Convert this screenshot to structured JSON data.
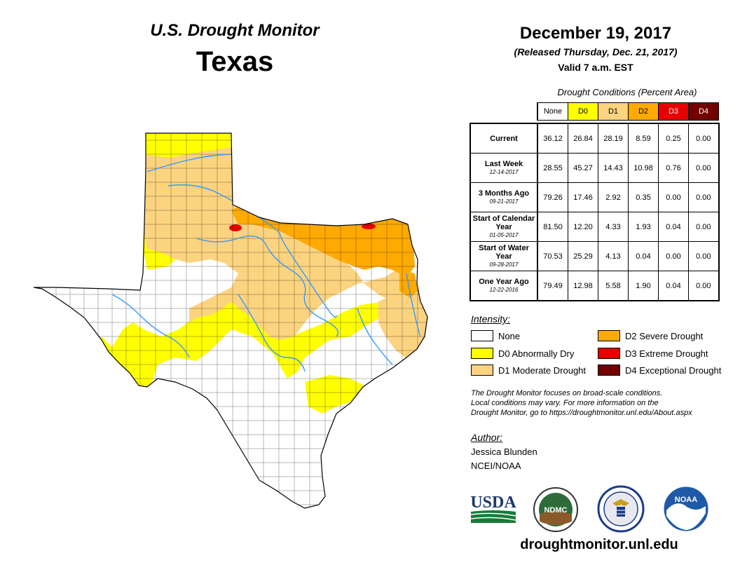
{
  "header": {
    "title": "U.S. Drought Monitor",
    "state": "Texas",
    "date": "December 19, 2017",
    "released": "(Released Thursday, Dec. 21, 2017)",
    "valid": "Valid 7 a.m. EST"
  },
  "table": {
    "caption": "Drought Conditions (Percent Area)",
    "columns": [
      "None",
      "D0",
      "D1",
      "D2",
      "D3",
      "D4"
    ],
    "rows": [
      {
        "label": "Current",
        "date": "",
        "values": [
          "36.12",
          "26.84",
          "28.19",
          "8.59",
          "0.25",
          "0.00"
        ]
      },
      {
        "label": "Last Week",
        "date": "12-14-2017",
        "values": [
          "28.55",
          "45.27",
          "14.43",
          "10.98",
          "0.76",
          "0.00"
        ]
      },
      {
        "label": "3 Months Ago",
        "date": "09-21-2017",
        "values": [
          "79.26",
          "17.46",
          "2.92",
          "0.35",
          "0.00",
          "0.00"
        ]
      },
      {
        "label": "Start of Calendar Year",
        "date": "01-05-2017",
        "values": [
          "81.50",
          "12.20",
          "4.33",
          "1.93",
          "0.04",
          "0.00"
        ]
      },
      {
        "label": "Start of Water Year",
        "date": "09-28-2017",
        "values": [
          "70.53",
          "25.29",
          "4.13",
          "0.04",
          "0.00",
          "0.00"
        ]
      },
      {
        "label": "One Year Ago",
        "date": "12-22-2016",
        "values": [
          "79.49",
          "12.98",
          "5.58",
          "1.90",
          "0.04",
          "0.00"
        ]
      }
    ]
  },
  "colors": {
    "none": "#ffffff",
    "d0": "#ffff00",
    "d1": "#fcd37f",
    "d2": "#ffaa00",
    "d3": "#e60000",
    "d4": "#730000",
    "river": "#3399ff"
  },
  "legend": {
    "title": "Intensity:",
    "items": [
      {
        "label": "None"
      },
      {
        "label": "D0 Abnormally Dry"
      },
      {
        "label": "D1 Moderate Drought"
      },
      {
        "label": "D2 Severe Drought"
      },
      {
        "label": "D3 Extreme Drought"
      },
      {
        "label": "D4 Exceptional Drought"
      }
    ]
  },
  "disclaimer": [
    "The Drought Monitor focuses on broad-scale conditions.",
    "Local conditions may vary. For more information on the",
    "Drought Monitor, go to https://droughtmonitor.unl.edu/About.aspx"
  ],
  "author": {
    "label": "Author:",
    "name": "Jessica Blunden",
    "org": "NCEI/NOAA"
  },
  "logos": {
    "usda": "USDA",
    "ndmc": "NDMC",
    "noaa": "NOAA"
  },
  "url": "droughtmonitor.unl.edu"
}
